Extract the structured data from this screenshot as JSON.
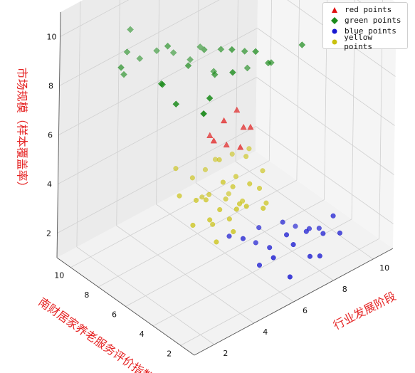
{
  "chart_data": {
    "type": "scatter3d",
    "title": "",
    "xlabel": "行业发展阶段",
    "ylabel": "南财居家养老服务评价指数",
    "zlabel": "市场规模（样本覆盖率）",
    "xlim": [
      1,
      11
    ],
    "ylim": [
      1,
      11
    ],
    "zlim": [
      1,
      11
    ],
    "x_ticks": [
      "2",
      "4",
      "6",
      "8",
      "10"
    ],
    "y_ticks": [
      "2",
      "4",
      "6",
      "8",
      "10"
    ],
    "z_ticks": [
      "2",
      "4",
      "6",
      "8",
      "10"
    ],
    "grid": true,
    "legend_position": "top-right",
    "label_color": "#e52222",
    "series": [
      {
        "name": "red points",
        "color": "#e01010",
        "marker": "triangle",
        "points": [
          [
            5.5,
            5.5,
            6.8
          ],
          [
            6.5,
            5.0,
            6.3
          ],
          [
            6.0,
            5.0,
            5.7
          ],
          [
            5.0,
            5.5,
            6.2
          ],
          [
            6.5,
            6.0,
            6.6
          ],
          [
            6.0,
            6.0,
            5.4
          ],
          [
            5.5,
            6.5,
            5.8
          ],
          [
            6.5,
            5.5,
            6.1
          ]
        ]
      },
      {
        "name": "green points",
        "color": "#1a8a1a",
        "marker": "diamond",
        "points": [
          [
            2.0,
            2.0,
            10.0
          ],
          [
            2.0,
            5.0,
            10.0
          ],
          [
            2.0,
            8.0,
            9.5
          ],
          [
            2.0,
            4.0,
            9.6
          ],
          [
            3.0,
            3.0,
            9.8
          ],
          [
            4.5,
            3.5,
            10.0
          ],
          [
            3.0,
            6.5,
            9.0
          ],
          [
            4.0,
            6.0,
            9.5
          ],
          [
            5.0,
            5.5,
            8.9
          ],
          [
            5.5,
            5.0,
            9.9
          ],
          [
            6.0,
            4.0,
            10.0
          ],
          [
            4.0,
            7.5,
            9.7
          ],
          [
            5.5,
            7.0,
            9.1
          ],
          [
            6.0,
            6.5,
            9.1
          ],
          [
            2.5,
            8.5,
            8.8
          ],
          [
            3.0,
            9.0,
            9.3
          ],
          [
            3.5,
            9.5,
            9.8
          ],
          [
            6.5,
            5.5,
            9.2
          ],
          [
            7.0,
            4.5,
            8.9
          ],
          [
            8.0,
            3.5,
            9.6
          ],
          [
            7.5,
            5.0,
            8.5
          ],
          [
            6.0,
            8.0,
            8.6
          ],
          [
            5.0,
            8.5,
            8.6
          ],
          [
            4.5,
            9.0,
            8.7
          ],
          [
            7.0,
            6.0,
            8.1
          ],
          [
            5.5,
            8.0,
            8.3
          ],
          [
            6.0,
            7.0,
            8.0
          ],
          [
            4.0,
            9.5,
            8.4
          ]
        ]
      },
      {
        "name": "blue points",
        "color": "#1818d0",
        "marker": "circle",
        "points": [
          [
            8.0,
            3.0,
            2.2
          ],
          [
            7.0,
            2.5,
            2.3
          ],
          [
            7.5,
            2.0,
            1.8
          ],
          [
            8.5,
            2.5,
            2.1
          ],
          [
            7.0,
            3.0,
            2.5
          ],
          [
            6.5,
            3.5,
            2.0
          ],
          [
            8.5,
            3.5,
            1.9
          ],
          [
            9.0,
            2.5,
            2.6
          ],
          [
            6.0,
            2.5,
            2.2
          ],
          [
            8.0,
            2.0,
            1.6
          ],
          [
            7.5,
            4.0,
            2.4
          ],
          [
            6.5,
            4.5,
            1.8
          ],
          [
            5.5,
            4.0,
            2.6
          ],
          [
            9.0,
            3.5,
            1.7
          ],
          [
            7.0,
            5.0,
            2.0
          ],
          [
            6.0,
            3.5,
            1.5
          ],
          [
            8.5,
            4.5,
            1.6
          ],
          [
            5.5,
            5.0,
            2.3
          ],
          [
            6.5,
            2.0,
            1.4
          ],
          [
            9.0,
            2.0,
            2.1
          ]
        ]
      },
      {
        "name": "yellow points",
        "color": "#c9c10e",
        "marker": "circle",
        "points": [
          [
            5.5,
            5.5,
            4.3
          ],
          [
            6.5,
            5.0,
            4.0
          ],
          [
            6.0,
            6.5,
            4.6
          ],
          [
            5.0,
            7.0,
            4.1
          ],
          [
            7.0,
            6.0,
            4.5
          ],
          [
            5.5,
            4.5,
            3.6
          ],
          [
            6.0,
            5.5,
            3.9
          ],
          [
            4.5,
            6.0,
            3.8
          ],
          [
            5.0,
            5.0,
            3.6
          ],
          [
            7.0,
            7.0,
            4.2
          ],
          [
            6.5,
            6.0,
            3.9
          ],
          [
            4.5,
            5.0,
            3.4
          ],
          [
            6.0,
            4.5,
            3.5
          ],
          [
            5.0,
            6.0,
            3.6
          ],
          [
            7.5,
            5.5,
            3.9
          ],
          [
            6.5,
            4.0,
            3.4
          ],
          [
            5.5,
            6.5,
            3.4
          ],
          [
            4.0,
            6.5,
            4.0
          ],
          [
            7.0,
            4.5,
            3.2
          ],
          [
            6.0,
            7.5,
            3.8
          ],
          [
            5.0,
            4.0,
            3.1
          ],
          [
            7.5,
            6.5,
            4.4
          ],
          [
            4.5,
            7.5,
            4.5
          ],
          [
            6.5,
            7.5,
            4.0
          ],
          [
            6.0,
            6.0,
            3.2
          ],
          [
            5.5,
            5.0,
            3.0
          ],
          [
            6.5,
            5.5,
            3.1
          ],
          [
            5.0,
            5.5,
            2.8
          ],
          [
            4.0,
            5.5,
            3.2
          ],
          [
            5.5,
            7.0,
            3.1
          ],
          [
            6.5,
            6.5,
            3.0
          ],
          [
            4.5,
            4.5,
            2.7
          ],
          [
            7.0,
            5.0,
            3.6
          ],
          [
            6.0,
            5.0,
            3.4
          ]
        ]
      }
    ]
  }
}
